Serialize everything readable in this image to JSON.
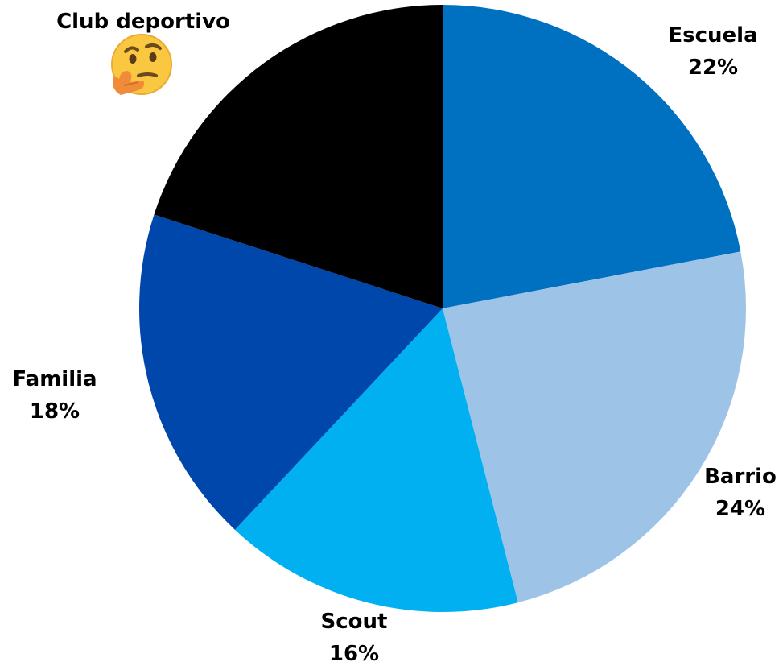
{
  "chart_data": {
    "type": "pie",
    "title": "",
    "start_angle_deg": 0,
    "direction": "clockwise",
    "slices": [
      {
        "label": "Escuela",
        "value": 22,
        "value_label": "22%",
        "color": "#0070C0"
      },
      {
        "label": "Barrio",
        "value": 24,
        "value_label": "24%",
        "color": "#9DC3E6"
      },
      {
        "label": "Scout",
        "value": 16,
        "value_label": "16%",
        "color": "#00B0F0"
      },
      {
        "label": "Familia",
        "value": 18,
        "value_label": "18%",
        "color": "#0047AB"
      },
      {
        "label": "Club deportivo",
        "value": 20,
        "value_label": "",
        "color": "#000000",
        "annotation_icon": "thinking-face-icon"
      }
    ],
    "legend": "none",
    "grid": false
  }
}
